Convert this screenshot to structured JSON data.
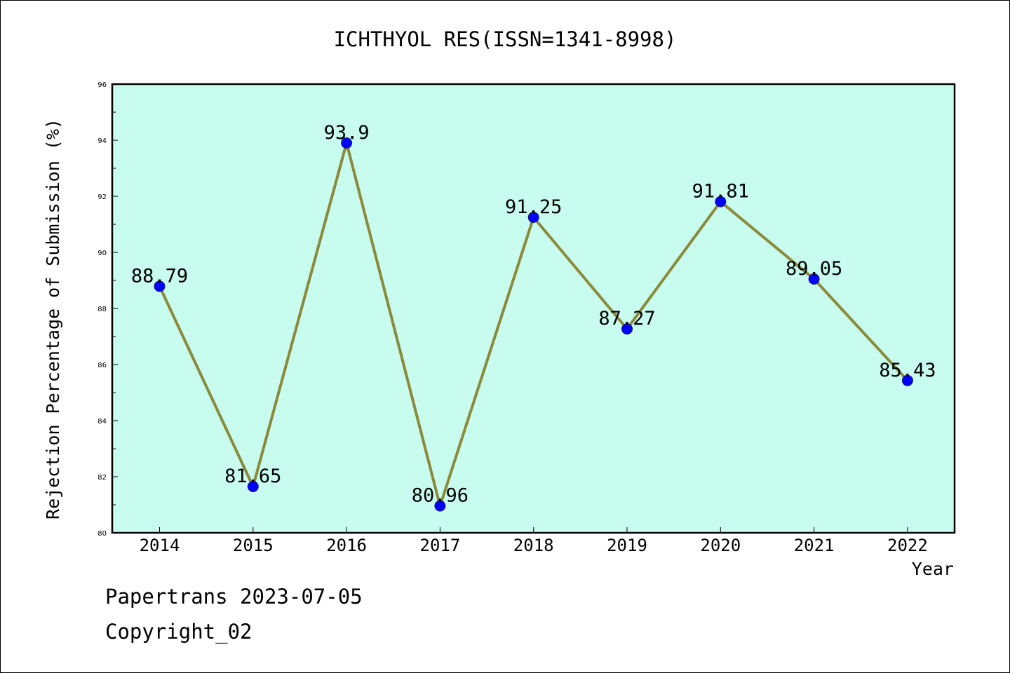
{
  "chart_data": {
    "type": "line",
    "title": "ICHTHYOL RES(ISSN=1341-8998)",
    "xlabel": "Year",
    "ylabel": "Rejection Percentage of Submission (%)",
    "categories": [
      "2014",
      "2015",
      "2016",
      "2017",
      "2018",
      "2019",
      "2020",
      "2021",
      "2022"
    ],
    "values": [
      88.79,
      81.65,
      93.9,
      80.96,
      91.25,
      87.27,
      91.81,
      89.05,
      85.43
    ],
    "data_labels": [
      "88.79",
      "81.65",
      "93.9",
      "80.96",
      "91.25",
      "87.27",
      "91.81",
      "89.05",
      "85.43"
    ],
    "ylim": [
      80,
      96
    ],
    "yticks": [
      "80",
      "82",
      "84",
      "86",
      "88",
      "90",
      "92",
      "94",
      "96"
    ],
    "grid": false,
    "colors": {
      "plot_background": "#c8fcee",
      "line": "#8b8a3a",
      "marker": "#0000ff"
    }
  },
  "footer": {
    "line1": "Papertrans 2023-07-05",
    "line2": "Copyright_02"
  }
}
